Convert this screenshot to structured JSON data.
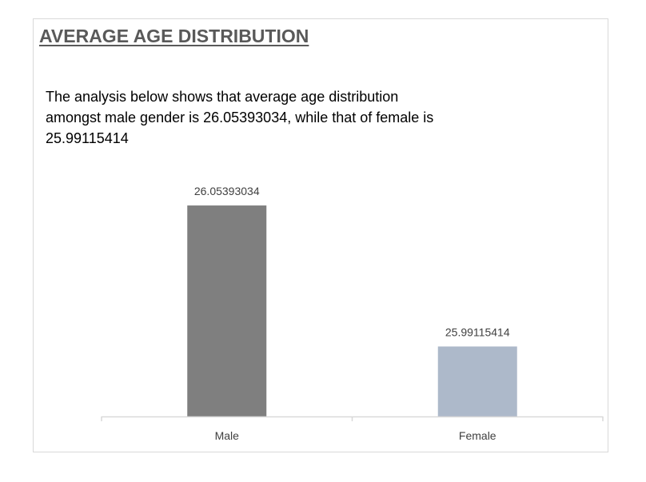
{
  "header": {
    "title": "AVERAGE AGE DISTRIBUTION",
    "description": "The analysis below shows that average age distribution\namongst male gender is 26.05393034, while that of female is\n25.99115414"
  },
  "colors": {
    "male_bar": "#7f7f7f",
    "female_bar": "#adb9ca",
    "axis": "#d9d9d9",
    "label": "#404040"
  },
  "chart_data": {
    "type": "bar",
    "title": "",
    "xlabel": "",
    "ylabel": "",
    "categories": [
      "Male",
      "Female"
    ],
    "values": [
      26.05393034,
      25.99115414
    ],
    "data_labels": [
      "26.05393034",
      "25.99115414"
    ],
    "ylim": [
      25.96,
      26.06
    ],
    "grid": false,
    "legend": "none"
  }
}
